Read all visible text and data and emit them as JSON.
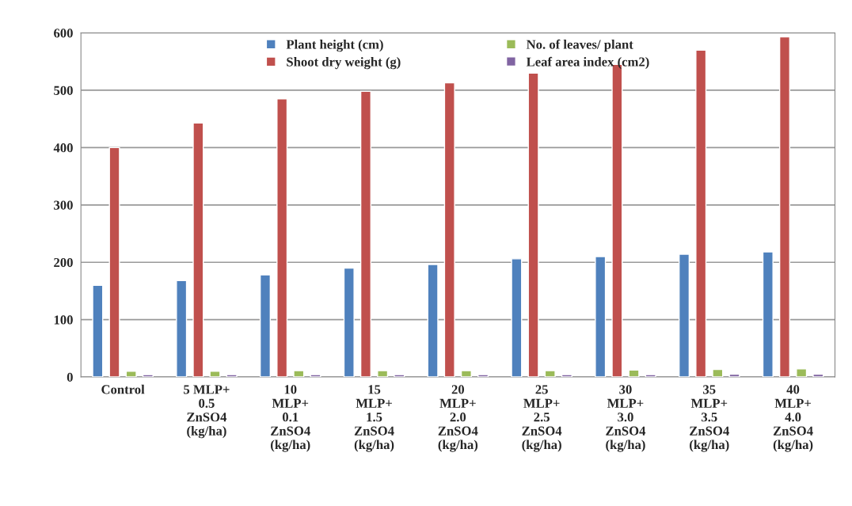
{
  "chart_data": {
    "type": "bar",
    "categories": [
      "Control",
      "5 MLP+\n0.5\nZnSO4\n(kg/ha)",
      "10\nMLP+\n0.1\nZnSO4\n(kg/ha)",
      "15\nMLP+\n1.5\nZnSO4\n(kg/ha)",
      "20\nMLP+\n2.0\nZnSO4\n(kg/ha)",
      "25\nMLP+\n2.5\nZnSO4\n(kg/ha)",
      "30\nMLP+\n3.0\nZnSO4\n(kg/ha)",
      "35\nMLP+\n3.5\nZnSO4\n(kg/ha)",
      "40\nMLP+\n4.0\nZnSO4\n(kg/ha)"
    ],
    "series": [
      {
        "name": "Plant height (cm)",
        "color": "#4f81bd",
        "values": [
          160,
          168,
          178,
          190,
          196,
          206,
          210,
          214,
          218
        ]
      },
      {
        "name": "Shoot dry weight (g)",
        "color": "#c0504d",
        "values": [
          400,
          443,
          485,
          498,
          513,
          530,
          545,
          570,
          593
        ]
      },
      {
        "name": "No. of leaves/ plant",
        "color": "#9bbb59",
        "values": [
          10,
          10,
          11,
          11,
          11,
          11,
          12,
          13,
          14
        ]
      },
      {
        "name": "Leaf area index (cm2)",
        "color": "#8064a2",
        "values": [
          4,
          4,
          4,
          4,
          4,
          4,
          4,
          5,
          5
        ]
      }
    ],
    "ylim": [
      0,
      600
    ],
    "yticks": [
      0,
      100,
      200,
      300,
      400,
      500,
      600
    ],
    "grid": "y",
    "legend": "top"
  }
}
